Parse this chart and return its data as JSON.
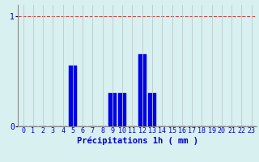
{
  "categories": [
    0,
    1,
    2,
    3,
    4,
    5,
    6,
    7,
    8,
    9,
    10,
    11,
    12,
    13,
    14,
    15,
    16,
    17,
    18,
    19,
    20,
    21,
    22,
    23
  ],
  "values": [
    0,
    0,
    0,
    0,
    0,
    0.55,
    0,
    0,
    0,
    0.3,
    0.3,
    0,
    0.65,
    0.3,
    0,
    0,
    0,
    0,
    0,
    0,
    0,
    0,
    0,
    0
  ],
  "bar_color": "#0000ee",
  "bar_edge_color": "#0000bb",
  "background_color": "#d8f0f0",
  "plot_bg_color": "#d8f0f0",
  "xlabel": "Précipitations 1h ( mm )",
  "ylim": [
    0,
    1.1
  ],
  "xlim": [
    -0.5,
    23.5
  ],
  "yticks": [
    0,
    1
  ],
  "xticks": [
    0,
    1,
    2,
    3,
    4,
    5,
    6,
    7,
    8,
    9,
    10,
    11,
    12,
    13,
    14,
    15,
    16,
    17,
    18,
    19,
    20,
    21,
    22,
    23
  ],
  "grid_color_x": "#bbcccc",
  "grid_color_top": "#cc4444",
  "xlabel_fontsize": 7.5,
  "tick_fontsize": 6,
  "tick_color": "#0000cc",
  "xlabel_color": "#0000cc",
  "ytick_color": "#0000cc",
  "spine_color": "#888888"
}
